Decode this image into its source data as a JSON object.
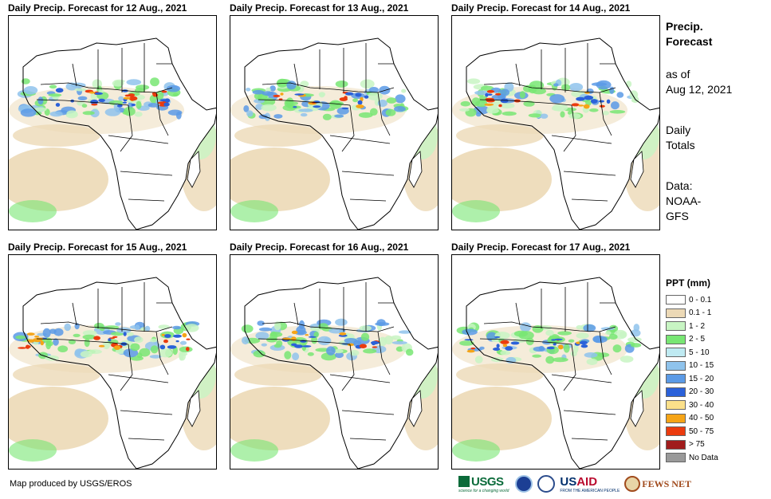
{
  "panels": [
    {
      "title": "Daily Precip. Forecast for 12 Aug., 2021",
      "day": 0
    },
    {
      "title": "Daily Precip. Forecast for 13 Aug., 2021",
      "day": 1
    },
    {
      "title": "Daily Precip. Forecast for 14 Aug., 2021",
      "day": 2
    },
    {
      "title": "Daily Precip. Forecast for 15 Aug., 2021",
      "day": 3
    },
    {
      "title": "Daily Precip. Forecast for 16 Aug., 2021",
      "day": 4
    },
    {
      "title": "Daily Precip. Forecast for 17 Aug., 2021",
      "day": 5
    }
  ],
  "sidebar": {
    "title_line1": "Precip.",
    "title_line2": "Forecast",
    "asof_line1": "as of",
    "asof_line2": "Aug 12, 2021",
    "daily_line1": "Daily",
    "daily_line2": "Totals",
    "data_line1": "Data:",
    "data_line2": "NOAA-",
    "data_line3": "GFS"
  },
  "legend": {
    "title": "PPT (mm)",
    "items": [
      {
        "label": "0 - 0.1",
        "color": "#ffffff"
      },
      {
        "label": "0.1 - 1",
        "color": "#ecd9b6"
      },
      {
        "label": "1 - 2",
        "color": "#c8f5c3"
      },
      {
        "label": "2 - 5",
        "color": "#78e673"
      },
      {
        "label": "5 - 10",
        "color": "#bfeaf2"
      },
      {
        "label": "10 - 15",
        "color": "#8fc3ec"
      },
      {
        "label": "15 - 20",
        "color": "#5b9ae6"
      },
      {
        "label": "20 - 30",
        "color": "#2b61d9"
      },
      {
        "label": "30 - 40",
        "color": "#fbe08a"
      },
      {
        "label": "40 - 50",
        "color": "#f5a417"
      },
      {
        "label": "50 - 75",
        "color": "#eb3b0e"
      },
      {
        "label": "> 75",
        "color": "#a01c1c"
      },
      {
        "label": "No Data",
        "color": "#999999"
      }
    ]
  },
  "credit": "Map produced by USGS/EROS",
  "logos": {
    "usgs": "USGS",
    "usgs_tagline": "science for a changing world",
    "usaid_main": "US",
    "usaid_red": "AID",
    "usaid_tagline": "FROM THE AMERICAN PEOPLE",
    "fews": "FEWS NET"
  }
}
